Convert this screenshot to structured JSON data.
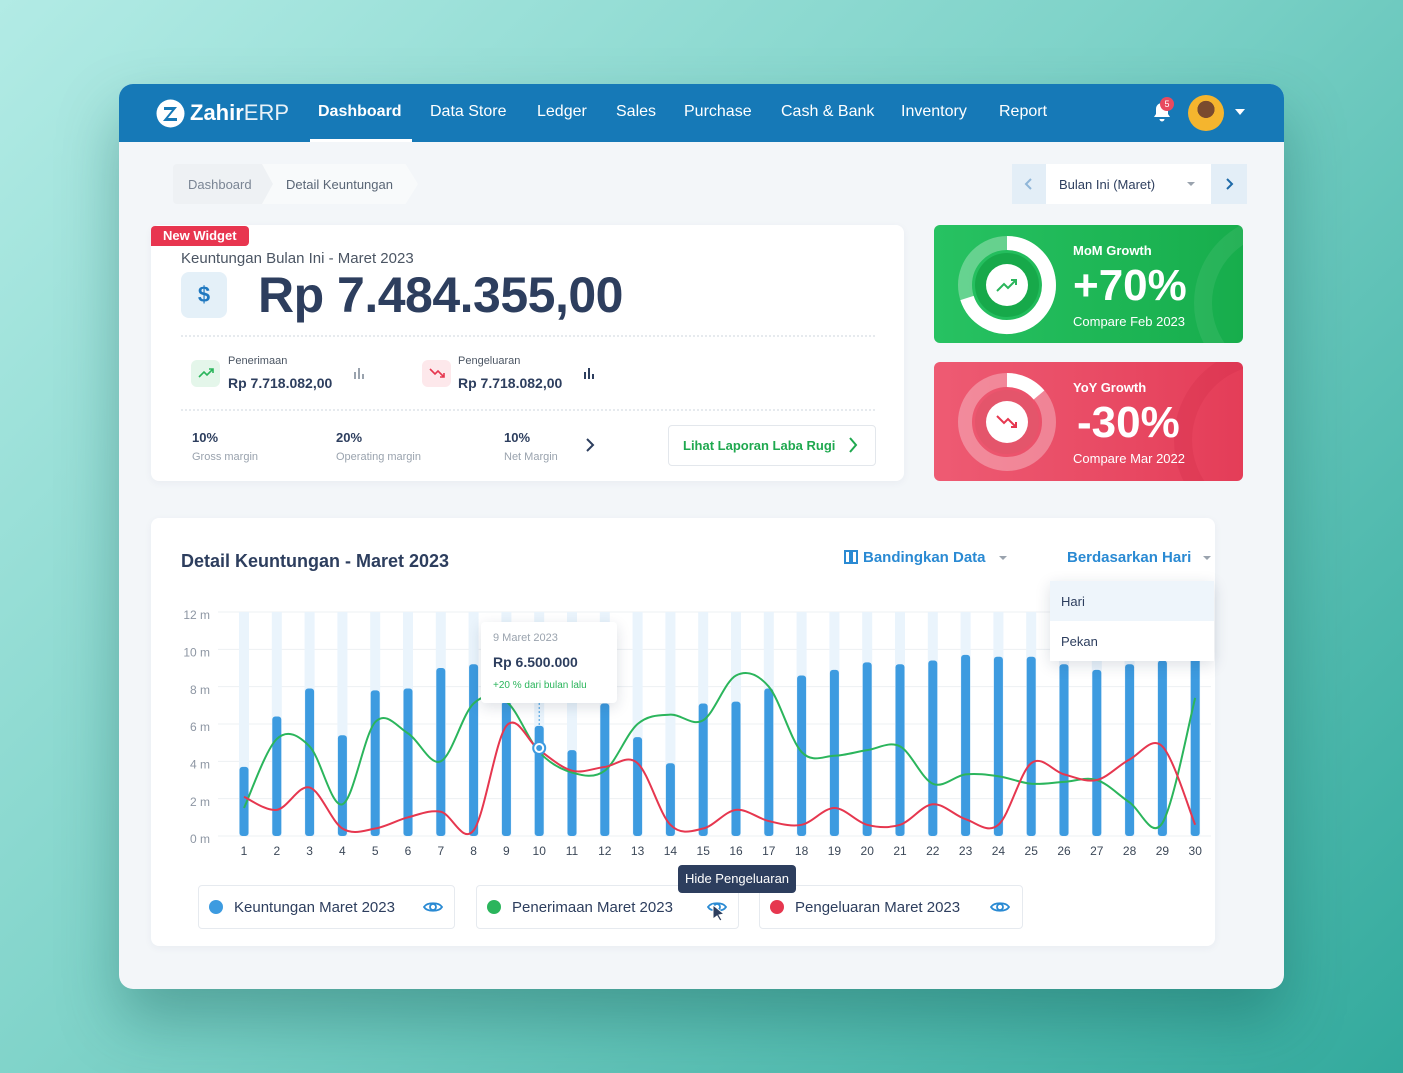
{
  "nav": {
    "logo_main": "Zahir",
    "logo_suffix": "ERP",
    "items": [
      "Dashboard",
      "Data Store",
      "Ledger",
      "Sales",
      "Purchase",
      "Cash & Bank",
      "Inventory",
      "Report"
    ],
    "notifications": "5"
  },
  "breadcrumb": [
    "Dashboard",
    "Detail Keuntungan"
  ],
  "period": "Bulan Ini (Maret)",
  "widget": {
    "badge": "New Widget",
    "title": "Keuntungan Bulan Ini - Maret 2023",
    "currency": "$",
    "amount": "Rp 7.484.355,00",
    "income": {
      "label": "Penerimaan",
      "value": "Rp 7.718.082,00"
    },
    "expense": {
      "label": "Pengeluaran",
      "value": "Rp 7.718.082,00"
    },
    "margins": [
      {
        "value": "10%",
        "label": "Gross margin"
      },
      {
        "value": "20%",
        "label": "Operating margin"
      },
      {
        "value": "10%",
        "label": "Net Margin"
      }
    ],
    "link": "Lihat Laporan Laba Rugi"
  },
  "growth": [
    {
      "label": "MoM Growth",
      "value": "+70%",
      "compare": "Compare Feb 2023"
    },
    {
      "label": "YoY Growth",
      "value": "-30%",
      "compare": "Compare Mar 2022"
    }
  ],
  "detail": {
    "compare_button": "Bandingkan Data",
    "group_button": "Berdasarkan Hari",
    "group_options": [
      "Hari",
      "Pekan"
    ],
    "tooltip": {
      "date": "9 Maret 2023",
      "value": "Rp 6.500.000",
      "change": "+20 % dari bulan lalu"
    },
    "hint": "Hide Pengeluaran"
  },
  "chart_data": {
    "type": "bar",
    "title": "Detail Keuntungan - Maret 2023",
    "categories": [
      "1",
      "2",
      "3",
      "4",
      "5",
      "6",
      "7",
      "8",
      "9",
      "10",
      "11",
      "12",
      "13",
      "14",
      "15",
      "16",
      "17",
      "18",
      "19",
      "20",
      "21",
      "22",
      "23",
      "24",
      "25",
      "26",
      "27",
      "28",
      "29",
      "30"
    ],
    "series": [
      {
        "name": "Keuntungan Maret 2023",
        "type": "bar",
        "color": "#3d9be0",
        "values": [
          3.7,
          6.4,
          7.9,
          5.4,
          7.8,
          7.9,
          9.0,
          9.2,
          7.2,
          5.9,
          4.6,
          7.1,
          5.3,
          3.9,
          7.1,
          7.2,
          7.9,
          8.6,
          8.9,
          9.3,
          9.2,
          9.4,
          9.7,
          9.6,
          9.6,
          9.2,
          8.9,
          9.2,
          9.4,
          9.7
        ]
      },
      {
        "name": "Penerimaan Maret 2023",
        "type": "line",
        "color": "#2bb55c",
        "values": [
          1.5,
          5.2,
          4.8,
          1.7,
          6.1,
          5.5,
          4.0,
          7.1,
          7.2,
          4.5,
          3.4,
          3.5,
          6.0,
          6.5,
          6.2,
          8.6,
          8.0,
          4.5,
          4.3,
          4.6,
          4.8,
          2.8,
          3.3,
          3.2,
          2.8,
          2.9,
          3.0,
          1.8,
          0.7,
          7.4
        ]
      },
      {
        "name": "Pengeluaran Maret 2023",
        "type": "line",
        "color": "#e6374f",
        "values": [
          2.1,
          1.4,
          2.6,
          0.4,
          0.4,
          1.0,
          1.3,
          0.3,
          5.9,
          4.6,
          3.5,
          3.7,
          3.9,
          0.6,
          0.4,
          1.4,
          0.8,
          0.6,
          1.5,
          0.6,
          0.6,
          1.7,
          0.9,
          0.6,
          3.9,
          3.3,
          3.0,
          4.1,
          4.8,
          0.6
        ]
      }
    ],
    "ylim": [
      0,
      12
    ],
    "yticks": [
      {
        "value": 0,
        "label": "0 m"
      },
      {
        "value": 2,
        "label": "2 m"
      },
      {
        "value": 4,
        "label": "4 m"
      },
      {
        "value": 6,
        "label": "6 m"
      },
      {
        "value": 8,
        "label": "8 m"
      },
      {
        "value": 10,
        "label": "10 m"
      },
      {
        "value": 12,
        "label": "12 m"
      }
    ],
    "grid": true
  }
}
